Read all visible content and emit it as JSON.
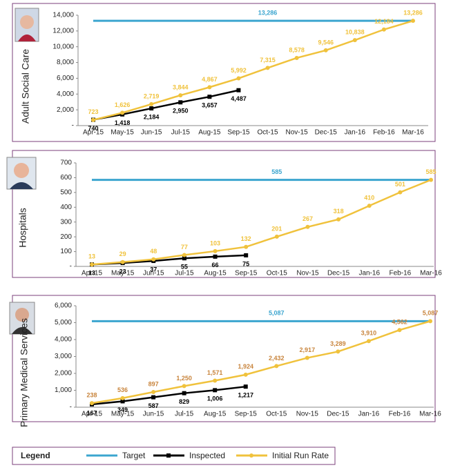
{
  "legend_title": "Legend",
  "chart_data": [
    {
      "type": "line",
      "y_title": "Adult Social Care",
      "categories": [
        "Apr-15",
        "May-15",
        "Jun-15",
        "Jul-15",
        "Aug-15",
        "Sep-15",
        "Oct-15",
        "Nov-15",
        "Dec-15",
        "Jan-16",
        "Feb-16",
        "Mar-16"
      ],
      "ylim": [
        0,
        14000
      ],
      "yticks": [
        {
          "value": 0,
          "label": "-"
        },
        {
          "value": 2000,
          "label": "2,000"
        },
        {
          "value": 4000,
          "label": "4,000"
        },
        {
          "value": 6000,
          "label": "6,000"
        },
        {
          "value": 8000,
          "label": "8,000"
        },
        {
          "value": 10000,
          "label": "10,000"
        },
        {
          "value": 12000,
          "label": "12,000"
        },
        {
          "value": 14000,
          "label": "14,000"
        }
      ],
      "series": [
        {
          "name": "Target",
          "color": "#3ba5cf",
          "values": [
            13286,
            13286,
            13286,
            13286,
            13286,
            13286,
            13286,
            13286,
            13286,
            13286,
            13286,
            13286
          ],
          "value_labels": [
            null,
            null,
            null,
            null,
            null,
            null,
            "13,286",
            null,
            null,
            null,
            null,
            null
          ]
        },
        {
          "name": "Inspected",
          "color": "#000000",
          "values": [
            740,
            1418,
            2184,
            2950,
            3657,
            4487,
            null,
            null,
            null,
            null,
            null,
            null
          ],
          "value_labels": [
            "740",
            "1,418",
            "2,184",
            "2,950",
            "3,657",
            "4,487",
            null,
            null,
            null,
            null,
            null,
            null
          ]
        },
        {
          "name": "Initial Run Rate",
          "color": "#f0c23c",
          "values": [
            723,
            1626,
            2719,
            3844,
            4867,
            5992,
            7315,
            8578,
            9546,
            10838,
            12184,
            13286
          ],
          "value_labels": [
            "723",
            "1,626",
            "2,719",
            "3,844",
            "4,867",
            "5,992",
            "7,315",
            "8,578",
            "9,546",
            "10,838",
            "12,184",
            "13,286"
          ]
        }
      ]
    },
    {
      "type": "line",
      "y_title": "Hospitals",
      "categories": [
        "Apr-15",
        "May-15",
        "Jun-15",
        "Jul-15",
        "Aug-15",
        "Sep-15",
        "Oct-15",
        "Nov-15",
        "Dec-15",
        "Jan-16",
        "Feb-16",
        "Mar-16"
      ],
      "ylim": [
        0,
        700
      ],
      "yticks": [
        {
          "value": 0,
          "label": "-"
        },
        100,
        200,
        300,
        400,
        500,
        600,
        700
      ],
      "series": [
        {
          "name": "Target",
          "color": "#3ba5cf",
          "values": [
            585,
            585,
            585,
            585,
            585,
            585,
            585,
            585,
            585,
            585,
            585,
            585
          ],
          "value_labels": [
            null,
            null,
            null,
            null,
            null,
            null,
            "585",
            null,
            null,
            null,
            null,
            null
          ]
        },
        {
          "name": "Inspected",
          "color": "#000000",
          "values": [
            13,
            23,
            37,
            55,
            66,
            75,
            null,
            null,
            null,
            null,
            null,
            null
          ]
        },
        {
          "name": "Initial Run Rate",
          "color": "#f0c23c",
          "values": [
            13,
            29,
            48,
            77,
            103,
            132,
            201,
            267,
            318,
            410,
            501,
            585
          ]
        }
      ]
    },
    {
      "type": "line",
      "y_title": "Primary Medical Services",
      "categories": [
        "Apr-15",
        "May-15",
        "Jun-15",
        "Jul-15",
        "Aug-15",
        "Sep-15",
        "Oct-15",
        "Nov-15",
        "Dec-15",
        "Jan-16",
        "Feb-16",
        "Mar-16"
      ],
      "ylim": [
        0,
        6000
      ],
      "yticks": [
        {
          "value": 0,
          "label": "-"
        },
        {
          "value": 1000,
          "label": "1,000"
        },
        {
          "value": 2000,
          "label": "2,000"
        },
        {
          "value": 3000,
          "label": "3,000"
        },
        {
          "value": 4000,
          "label": "4,000"
        },
        {
          "value": 5000,
          "label": "5,000"
        },
        {
          "value": 6000,
          "label": "6,000"
        }
      ],
      "series": [
        {
          "name": "Target",
          "color": "#3ba5cf",
          "values": [
            5087,
            5087,
            5087,
            5087,
            5087,
            5087,
            5087,
            5087,
            5087,
            5087,
            5087,
            5087
          ],
          "value_labels": [
            null,
            null,
            null,
            null,
            null,
            null,
            "5,087",
            null,
            null,
            null,
            null,
            null
          ]
        },
        {
          "name": "Inspected",
          "color": "#000000",
          "values": [
            167,
            349,
            587,
            829,
            1006,
            1217,
            null,
            null,
            null,
            null,
            null,
            null
          ],
          "value_labels": [
            "167",
            "349",
            "587",
            "829",
            "1,006",
            "1,217",
            null,
            null,
            null,
            null,
            null,
            null
          ]
        },
        {
          "name": "Initial Run Rate",
          "color": "#f0c23c",
          "values": [
            238,
            536,
            897,
            1250,
            1571,
            1924,
            2432,
            2917,
            3289,
            3910,
            4562,
            5087
          ],
          "value_labels": [
            "238",
            "536",
            "897",
            "1,250",
            "1,571",
            "1,924",
            "2,432",
            "2,917",
            "3,289",
            "3,910",
            "4,562",
            "5,087"
          ]
        }
      ]
    }
  ]
}
